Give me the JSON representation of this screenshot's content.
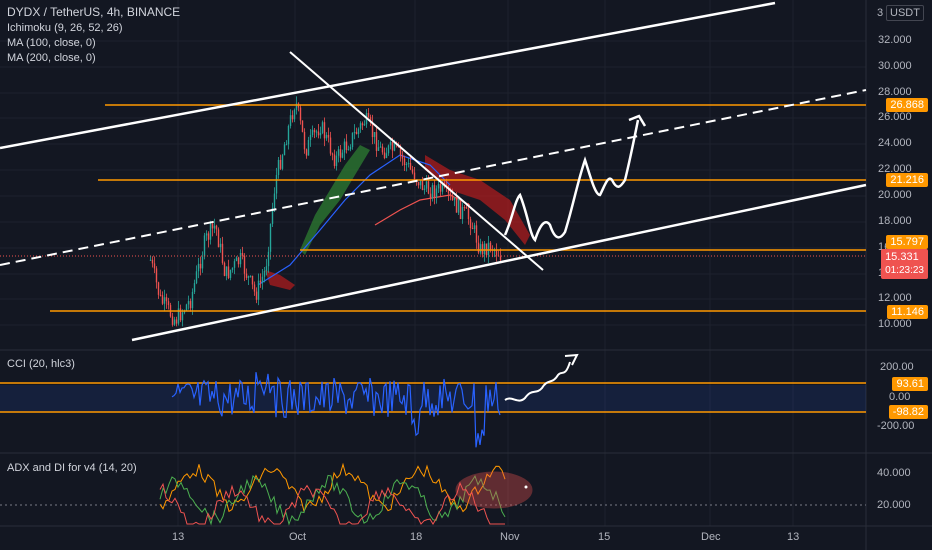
{
  "title": "DYDX / TetherUS, 4h, BINANCE",
  "indicators": [
    "Ichimoku (9, 26, 52, 26)",
    "MA (100, close, 0)",
    "MA (200, close, 0)"
  ],
  "currency": "USDT",
  "currency_prefix": "3",
  "price_axis": [
    "32.000",
    "30.000",
    "28.000",
    "26.000",
    "24.000",
    "22.000",
    "20.000",
    "18.000",
    "16.000",
    "14.000",
    "12.000",
    "10.000"
  ],
  "price_badges": {
    "level_1": "26.868",
    "level_2": "21.216",
    "level_3": "15.797",
    "last_price": "15.331",
    "countdown": "01:23:23",
    "level_4": "11.146"
  },
  "cci": {
    "legend": "CCI (20, hlc3)",
    "axis": [
      "200.00",
      "0.00",
      "-200.00"
    ],
    "badge_upper": "93.61",
    "badge_lower": "-98.82"
  },
  "adx": {
    "legend": "ADX and DI for v4 (14, 20)",
    "axis": [
      "40.000",
      "20.000"
    ]
  },
  "time_axis": [
    "13",
    "Oct",
    "18",
    "Nov",
    "15",
    "Dec",
    "13"
  ],
  "colors": {
    "background": "#131722",
    "orange": "#ff9800",
    "up": "#26a69a",
    "down": "#ef5350",
    "white": "#ffffff",
    "blue": "#2962ff"
  }
}
